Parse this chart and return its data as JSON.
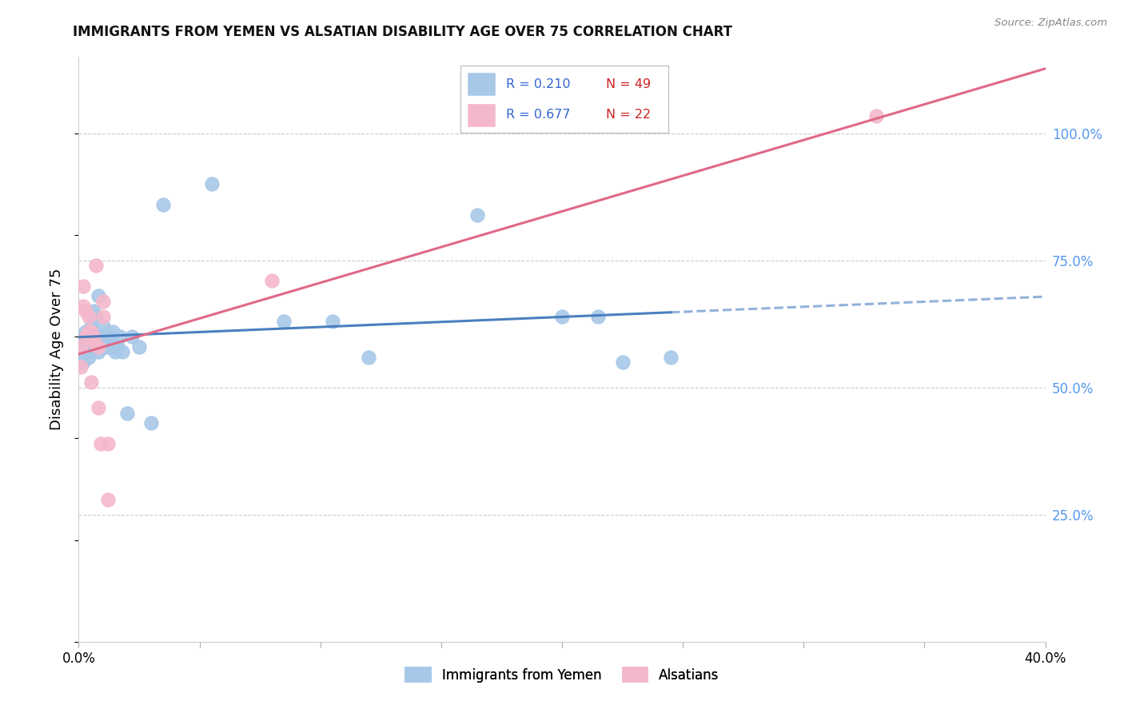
{
  "title": "IMMIGRANTS FROM YEMEN VS ALSATIAN DISABILITY AGE OVER 75 CORRELATION CHART",
  "source": "Source: ZipAtlas.com",
  "ylabel": "Disability Age Over 75",
  "xlim": [
    0.0,
    0.4
  ],
  "ylim": [
    0.0,
    1.15
  ],
  "ytick_positions_right": [
    0.25,
    0.5,
    0.75,
    1.0
  ],
  "ytick_labels_right": [
    "25.0%",
    "50.0%",
    "75.0%",
    "100.0%"
  ],
  "blue_color": "#a8c8e8",
  "pink_color": "#f4b8cc",
  "blue_line_color": "#4a7fc0",
  "pink_line_color": "#e06888",
  "blue_scatter_x": [
    0.001,
    0.002,
    0.002,
    0.003,
    0.003,
    0.003,
    0.004,
    0.004,
    0.005,
    0.005,
    0.005,
    0.006,
    0.006,
    0.007,
    0.007,
    0.008,
    0.008,
    0.008,
    0.009,
    0.009,
    0.01,
    0.01,
    0.01,
    0.011,
    0.011,
    0.012,
    0.012,
    0.013,
    0.013,
    0.014,
    0.015,
    0.015,
    0.016,
    0.017,
    0.018,
    0.02,
    0.022,
    0.025,
    0.03,
    0.035,
    0.055,
    0.085,
    0.105,
    0.12,
    0.165,
    0.2,
    0.215,
    0.225,
    0.245
  ],
  "blue_scatter_y": [
    0.595,
    0.57,
    0.55,
    0.6,
    0.61,
    0.58,
    0.57,
    0.56,
    0.59,
    0.62,
    0.61,
    0.65,
    0.64,
    0.58,
    0.64,
    0.68,
    0.6,
    0.57,
    0.59,
    0.6,
    0.59,
    0.62,
    0.6,
    0.58,
    0.6,
    0.59,
    0.58,
    0.58,
    0.6,
    0.61,
    0.57,
    0.58,
    0.58,
    0.6,
    0.57,
    0.45,
    0.6,
    0.58,
    0.43,
    0.86,
    0.9,
    0.63,
    0.63,
    0.56,
    0.84,
    0.64,
    0.64,
    0.55,
    0.56
  ],
  "pink_scatter_x": [
    0.001,
    0.001,
    0.002,
    0.002,
    0.003,
    0.003,
    0.004,
    0.004,
    0.005,
    0.005,
    0.006,
    0.006,
    0.007,
    0.008,
    0.008,
    0.009,
    0.01,
    0.01,
    0.012,
    0.012,
    0.08,
    0.33
  ],
  "pink_scatter_y": [
    0.58,
    0.54,
    0.7,
    0.66,
    0.65,
    0.6,
    0.64,
    0.61,
    0.61,
    0.51,
    0.6,
    0.59,
    0.74,
    0.58,
    0.46,
    0.39,
    0.67,
    0.64,
    0.28,
    0.39,
    0.71,
    1.035
  ],
  "background_color": "#ffffff",
  "grid_color": "#cccccc",
  "blue_line_solid_end": 0.245,
  "blue_line_dash_end": 0.4
}
